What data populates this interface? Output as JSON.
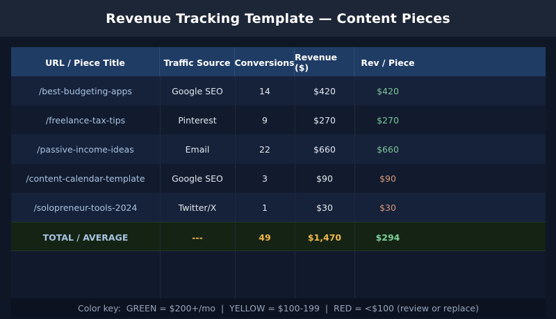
{
  "page": {
    "title": "Revenue Tracking Template — Content Pieces"
  },
  "table": {
    "headers": [
      "URL / Piece Title",
      "Traffic Source",
      "Conversions",
      "Revenue ($)",
      "Rev / Piece"
    ],
    "rows": [
      {
        "url": "/best-budgeting-apps",
        "source": "Google SEO",
        "conversions": "14",
        "revenue": "$420",
        "rev_piece": "$420",
        "tier": "green"
      },
      {
        "url": "/freelance-tax-tips",
        "source": "Pinterest",
        "conversions": "9",
        "revenue": "$270",
        "rev_piece": "$270",
        "tier": "green"
      },
      {
        "url": "/passive-income-ideas",
        "source": "Email",
        "conversions": "22",
        "revenue": "$660",
        "rev_piece": "$660",
        "tier": "green"
      },
      {
        "url": "/content-calendar-template",
        "source": "Google SEO",
        "conversions": "3",
        "revenue": "$90",
        "rev_piece": "$90",
        "tier": "red"
      },
      {
        "url": "/solopreneur-tools-2024",
        "source": "Twitter/X",
        "conversions": "1",
        "revenue": "$30",
        "rev_piece": "$30",
        "tier": "red"
      }
    ],
    "total": {
      "label": "TOTAL / AVERAGE",
      "source": "---",
      "conversions": "49",
      "revenue": "$1,470",
      "rev_piece": "$294"
    }
  },
  "footer": {
    "color_key": "Color key:  GREEN = $200+/mo  |  YELLOW = $100-199  |  RED = <$100 (review or replace)"
  },
  "colors": {
    "green": "#7ec89a",
    "yellow": "#f0b84a",
    "red": "#d99a7a",
    "header_bg": "#1f3c64"
  }
}
